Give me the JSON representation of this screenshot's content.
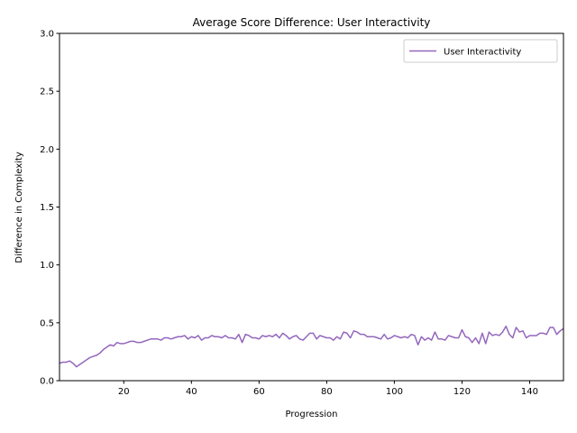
{
  "chart_data": {
    "type": "line",
    "title": "Average Score Difference: User Interactivity",
    "xlabel": "Progression",
    "ylabel": "Difference in Complexity",
    "xlim": [
      1,
      150
    ],
    "ylim": [
      0,
      3.0
    ],
    "xticks": [
      20,
      40,
      60,
      80,
      100,
      120,
      140
    ],
    "xtick_labels": [
      "20",
      "40",
      "60",
      "80",
      "100",
      "120",
      "140"
    ],
    "yticks": [
      0,
      0.5,
      1.0,
      1.5,
      2.0,
      2.5,
      3.0
    ],
    "ytick_labels": [
      "0.0",
      "0.5",
      "1.0",
      "1.5",
      "2.0",
      "2.5",
      "3.0"
    ],
    "grid": false,
    "legend_position": "top-right",
    "series": [
      {
        "name": "User Interactivity",
        "color": "#9467bd",
        "x": [
          1,
          2,
          3,
          4,
          5,
          6,
          7,
          8,
          9,
          10,
          11,
          12,
          13,
          14,
          15,
          16,
          17,
          18,
          19,
          20,
          21,
          22,
          23,
          24,
          25,
          26,
          27,
          28,
          29,
          30,
          31,
          32,
          33,
          34,
          35,
          36,
          37,
          38,
          39,
          40,
          41,
          42,
          43,
          44,
          45,
          46,
          47,
          48,
          49,
          50,
          51,
          52,
          53,
          54,
          55,
          56,
          57,
          58,
          59,
          60,
          61,
          62,
          63,
          64,
          65,
          66,
          67,
          68,
          69,
          70,
          71,
          72,
          73,
          74,
          75,
          76,
          77,
          78,
          79,
          80,
          81,
          82,
          83,
          84,
          85,
          86,
          87,
          88,
          89,
          90,
          91,
          92,
          93,
          94,
          95,
          96,
          97,
          98,
          99,
          100,
          101,
          102,
          103,
          104,
          105,
          106,
          107,
          108,
          109,
          110,
          111,
          112,
          113,
          114,
          115,
          116,
          117,
          118,
          119,
          120,
          121,
          122,
          123,
          124,
          125,
          126,
          127,
          128,
          129,
          130,
          131,
          132,
          133,
          134,
          135,
          136,
          137,
          138,
          139,
          140,
          141,
          142,
          143,
          144,
          145,
          146,
          147,
          148,
          149,
          150
        ],
        "y": [
          0.15,
          0.16,
          0.16,
          0.17,
          0.15,
          0.12,
          0.14,
          0.16,
          0.18,
          0.2,
          0.21,
          0.22,
          0.24,
          0.27,
          0.29,
          0.31,
          0.3,
          0.33,
          0.32,
          0.32,
          0.33,
          0.34,
          0.34,
          0.33,
          0.33,
          0.34,
          0.35,
          0.36,
          0.36,
          0.36,
          0.35,
          0.37,
          0.37,
          0.36,
          0.37,
          0.38,
          0.38,
          0.39,
          0.36,
          0.38,
          0.37,
          0.39,
          0.35,
          0.37,
          0.37,
          0.39,
          0.38,
          0.38,
          0.37,
          0.39,
          0.37,
          0.37,
          0.36,
          0.4,
          0.33,
          0.4,
          0.39,
          0.37,
          0.37,
          0.36,
          0.39,
          0.38,
          0.39,
          0.38,
          0.4,
          0.37,
          0.41,
          0.39,
          0.36,
          0.38,
          0.39,
          0.36,
          0.35,
          0.38,
          0.41,
          0.41,
          0.36,
          0.39,
          0.38,
          0.37,
          0.37,
          0.35,
          0.38,
          0.36,
          0.42,
          0.41,
          0.37,
          0.43,
          0.42,
          0.4,
          0.4,
          0.38,
          0.38,
          0.38,
          0.37,
          0.36,
          0.4,
          0.36,
          0.37,
          0.39,
          0.38,
          0.37,
          0.38,
          0.37,
          0.4,
          0.39,
          0.31,
          0.38,
          0.35,
          0.37,
          0.35,
          0.42,
          0.36,
          0.36,
          0.35,
          0.39,
          0.38,
          0.37,
          0.37,
          0.44,
          0.38,
          0.37,
          0.33,
          0.37,
          0.32,
          0.41,
          0.32,
          0.42,
          0.39,
          0.4,
          0.39,
          0.42,
          0.47,
          0.4,
          0.37,
          0.46,
          0.42,
          0.43,
          0.37,
          0.39,
          0.39,
          0.39,
          0.41,
          0.41,
          0.4,
          0.46,
          0.46,
          0.4,
          0.43,
          0.45
        ]
      }
    ]
  }
}
